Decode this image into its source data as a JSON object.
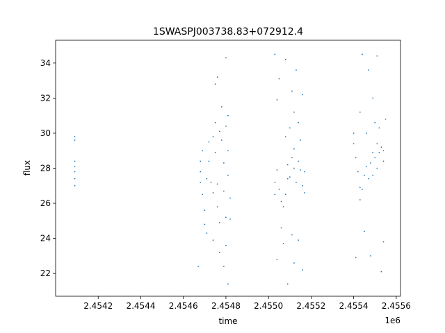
{
  "chart_data": {
    "type": "scatter",
    "title": "1SWASPJ003738.83+072912.4",
    "xlabel": "time",
    "ylabel": "flux",
    "x_offset_label": "1e6",
    "xlim": [
      2.454,
      2.45562
    ],
    "ylim": [
      20.7,
      35.3
    ],
    "x_ticks": [
      2.4542,
      2.4544,
      2.4546,
      2.4548,
      2.455,
      2.4552,
      2.4554,
      2.4556
    ],
    "x_tick_labels": [
      "2.4542",
      "2.4544",
      "2.4546",
      "2.4548",
      "2.4550",
      "2.4552",
      "2.4554",
      "2.4556"
    ],
    "y_ticks": [
      22,
      24,
      26,
      28,
      30,
      32,
      34
    ],
    "y_tick_labels": [
      "22",
      "24",
      "26",
      "28",
      "30",
      "32",
      "34"
    ],
    "grid": false,
    "legend": "none",
    "marker_color": "#1f77b4",
    "series": [
      {
        "points": [
          [
            2.45409,
            27.0
          ],
          [
            2.45409,
            27.4
          ],
          [
            2.45409,
            27.8
          ],
          [
            2.45409,
            28.1
          ],
          [
            2.45409,
            28.4
          ],
          [
            2.45409,
            29.6
          ],
          [
            2.45409,
            29.8
          ],
          [
            2.45468,
            27.2
          ],
          [
            2.45468,
            27.8
          ],
          [
            2.45468,
            28.4
          ],
          [
            2.45469,
            29.0
          ],
          [
            2.45469,
            26.5
          ],
          [
            2.4547,
            25.6
          ],
          [
            2.4547,
            24.8
          ],
          [
            2.45471,
            24.3
          ],
          [
            2.45471,
            27.4
          ],
          [
            2.45472,
            29.5
          ],
          [
            2.45472,
            28.4
          ],
          [
            2.45473,
            27.2
          ],
          [
            2.45474,
            26.6
          ],
          [
            2.45474,
            29.8
          ],
          [
            2.45475,
            30.6
          ],
          [
            2.45475,
            28.9
          ],
          [
            2.45476,
            27.1
          ],
          [
            2.45476,
            25.8
          ],
          [
            2.45477,
            24.9
          ],
          [
            2.45477,
            30.1
          ],
          [
            2.45478,
            29.6
          ],
          [
            2.45479,
            28.3
          ],
          [
            2.45479,
            26.7
          ],
          [
            2.4548,
            25.2
          ],
          [
            2.4548,
            30.4
          ],
          [
            2.45481,
            29.0
          ],
          [
            2.45481,
            27.6
          ],
          [
            2.45482,
            26.3
          ],
          [
            2.45482,
            25.1
          ],
          [
            2.45475,
            32.8
          ],
          [
            2.45476,
            33.2
          ],
          [
            2.45478,
            31.5
          ],
          [
            2.4548,
            34.3
          ],
          [
            2.45479,
            22.4
          ],
          [
            2.45481,
            21.4
          ],
          [
            2.4548,
            23.6
          ],
          [
            2.45474,
            23.9
          ],
          [
            2.45477,
            23.2
          ],
          [
            2.45467,
            22.4
          ],
          [
            2.45481,
            31.0
          ],
          [
            2.45503,
            26.5
          ],
          [
            2.45503,
            27.2
          ],
          [
            2.45504,
            27.9
          ],
          [
            2.45505,
            26.8
          ],
          [
            2.45506,
            26.1
          ],
          [
            2.45507,
            25.8
          ],
          [
            2.45508,
            26.5
          ],
          [
            2.45509,
            27.4
          ],
          [
            2.45509,
            28.2
          ],
          [
            2.4551,
            27.5
          ],
          [
            2.45511,
            28.6
          ],
          [
            2.45512,
            29.1
          ],
          [
            2.45512,
            28.0
          ],
          [
            2.45513,
            27.2
          ],
          [
            2.45514,
            28.4
          ],
          [
            2.45515,
            29.6
          ],
          [
            2.45515,
            27.9
          ],
          [
            2.45516,
            27.0
          ],
          [
            2.45517,
            26.6
          ],
          [
            2.45517,
            27.8
          ],
          [
            2.45508,
            29.8
          ],
          [
            2.4551,
            30.3
          ],
          [
            2.45512,
            31.2
          ],
          [
            2.45514,
            30.6
          ],
          [
            2.45503,
            34.5
          ],
          [
            2.45508,
            34.2
          ],
          [
            2.45505,
            33.1
          ],
          [
            2.45511,
            32.4
          ],
          [
            2.45513,
            33.6
          ],
          [
            2.45504,
            31.9
          ],
          [
            2.45516,
            32.2
          ],
          [
            2.45504,
            22.8
          ],
          [
            2.45507,
            23.7
          ],
          [
            2.45509,
            21.4
          ],
          [
            2.45512,
            22.6
          ],
          [
            2.45514,
            23.9
          ],
          [
            2.45506,
            24.6
          ],
          [
            2.45511,
            24.2
          ],
          [
            2.45516,
            22.2
          ],
          [
            2.4554,
            29.4
          ],
          [
            2.4554,
            30.0
          ],
          [
            2.45541,
            28.6
          ],
          [
            2.45542,
            27.8
          ],
          [
            2.45543,
            26.9
          ],
          [
            2.45543,
            26.2
          ],
          [
            2.45544,
            26.8
          ],
          [
            2.45545,
            27.6
          ],
          [
            2.45546,
            28.1
          ],
          [
            2.45547,
            27.4
          ],
          [
            2.45548,
            28.3
          ],
          [
            2.45549,
            28.9
          ],
          [
            2.45549,
            27.6
          ],
          [
            2.4555,
            28.6
          ],
          [
            2.45551,
            29.4
          ],
          [
            2.45551,
            28.0
          ],
          [
            2.45552,
            28.9
          ],
          [
            2.45553,
            29.2
          ],
          [
            2.45554,
            28.4
          ],
          [
            2.45554,
            29.0
          ],
          [
            2.45546,
            30.0
          ],
          [
            2.4555,
            30.6
          ],
          [
            2.45552,
            30.3
          ],
          [
            2.45544,
            34.5
          ],
          [
            2.45547,
            33.6
          ],
          [
            2.45551,
            34.4
          ],
          [
            2.45543,
            31.2
          ],
          [
            2.45549,
            32.0
          ],
          [
            2.45545,
            24.4
          ],
          [
            2.45548,
            23.0
          ],
          [
            2.45553,
            22.1
          ],
          [
            2.45554,
            23.8
          ],
          [
            2.45541,
            22.9
          ],
          [
            2.45555,
            30.8
          ]
        ]
      }
    ]
  }
}
